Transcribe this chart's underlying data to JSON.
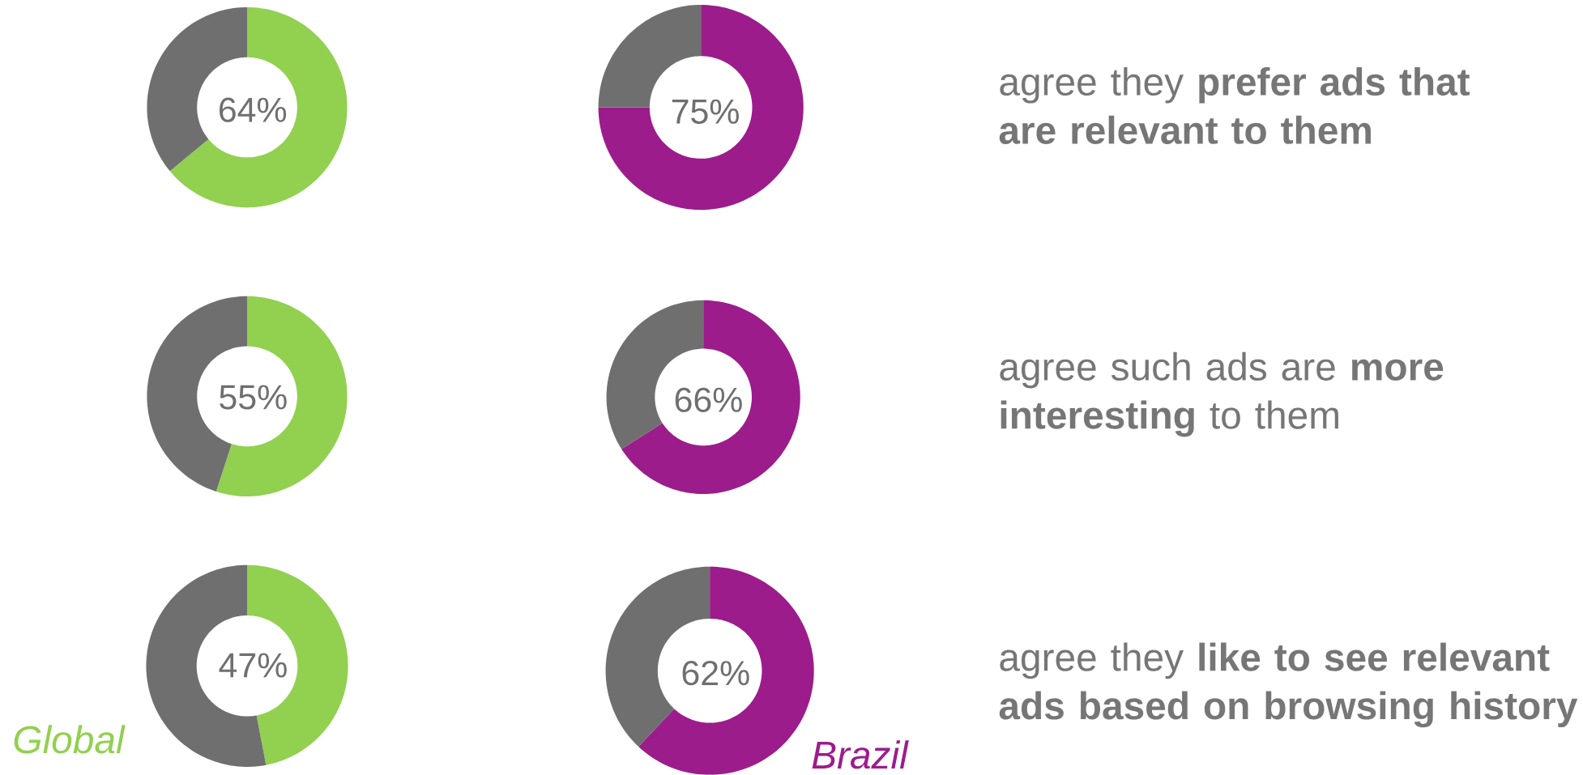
{
  "chart_data": [
    {
      "type": "donut",
      "categories": [
        null,
        null
      ],
      "values": [
        64,
        36
      ],
      "colors": [
        "#92d050",
        "#6f6f6f"
      ],
      "value_labels": [
        "64%",
        null
      ]
    },
    {
      "type": "donut",
      "categories": [
        null,
        null
      ],
      "values": [
        75,
        25
      ],
      "colors": [
        "#9c1c8c",
        "#6f6f6f"
      ],
      "value_labels": [
        "75%",
        null
      ]
    },
    {
      "type": "donut",
      "categories": [
        null,
        null
      ],
      "values": [
        55,
        45
      ],
      "colors": [
        "#92d050",
        "#6f6f6f"
      ],
      "value_labels": [
        "55%",
        null
      ]
    },
    {
      "type": "donut",
      "categories": [
        null,
        null
      ],
      "values": [
        66,
        34
      ],
      "colors": [
        "#9c1c8c",
        "#6f6f6f"
      ],
      "value_labels": [
        "66%",
        null
      ]
    },
    {
      "type": "donut",
      "categories": [
        null,
        null
      ],
      "values": [
        47,
        53
      ],
      "colors": [
        "#92d050",
        "#6f6f6f"
      ],
      "value_labels": [
        "47%",
        null
      ],
      "annotations": [
        "Global"
      ]
    },
    {
      "type": "donut",
      "categories": [
        null,
        null
      ],
      "values": [
        62,
        38
      ],
      "colors": [
        "#9c1c8c",
        "#6f6f6f"
      ],
      "value_labels": [
        "62%",
        null
      ],
      "annotations": [
        "Brazil"
      ]
    },
    {
      "type": "other",
      "annotations": [
        "agree they **prefer ads that are relevant to them**",
        "agree such ads are **more interesting** to them",
        "agree they **like to see relevant ads based on browsing history**"
      ]
    }
  ]
}
